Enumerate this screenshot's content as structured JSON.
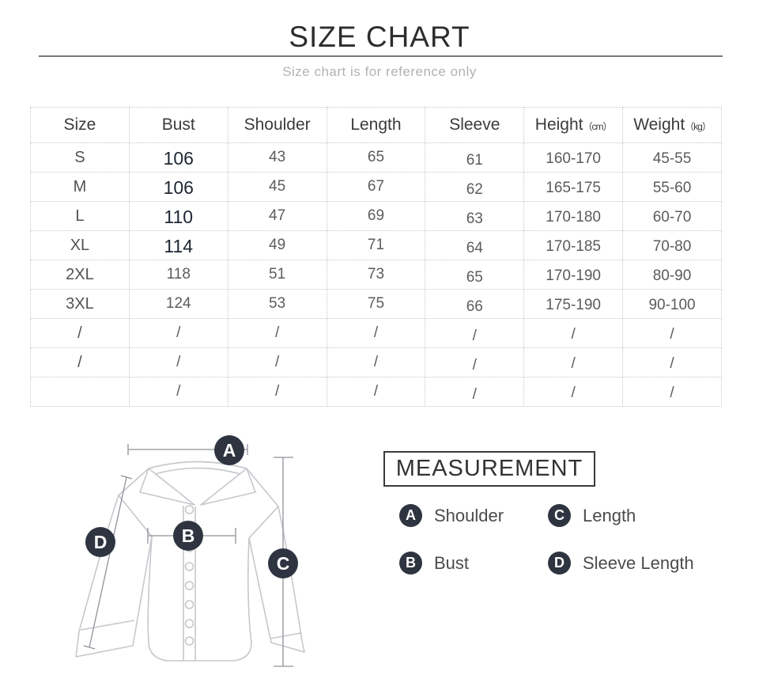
{
  "page": {
    "title": "SIZE CHART",
    "subtitle": "Size chart is for reference only"
  },
  "size_table": {
    "columns": [
      {
        "label": "Size",
        "unit": ""
      },
      {
        "label": "Bust",
        "unit": ""
      },
      {
        "label": "Shoulder",
        "unit": ""
      },
      {
        "label": "Length",
        "unit": ""
      },
      {
        "label": "Sleeve",
        "unit": ""
      },
      {
        "label": "Height",
        "unit": "（cm）"
      },
      {
        "label": "Weight",
        "unit": "（kg）"
      }
    ],
    "rows": [
      {
        "cells": [
          "S",
          "106",
          "43",
          "65",
          "61",
          "160-170",
          "45-55"
        ],
        "bust_emphasis": true
      },
      {
        "cells": [
          "M",
          "106",
          "45",
          "67",
          "62",
          "165-175",
          "55-60"
        ],
        "bust_emphasis": true
      },
      {
        "cells": [
          "L",
          "110",
          "47",
          "69",
          "63",
          "170-180",
          "60-70"
        ],
        "bust_emphasis": true
      },
      {
        "cells": [
          "XL",
          "114",
          "49",
          "71",
          "64",
          "170-185",
          "70-80"
        ],
        "bust_emphasis": true
      },
      {
        "cells": [
          "2XL",
          "118",
          "51",
          "73",
          "65",
          "170-190",
          "80-90"
        ],
        "bust_emphasis": false
      },
      {
        "cells": [
          "3XL",
          "124",
          "53",
          "75",
          "66",
          "175-190",
          "90-100"
        ],
        "bust_emphasis": false
      },
      {
        "cells": [
          "/",
          "/",
          "/",
          "/",
          "/",
          "/",
          "/"
        ],
        "bust_emphasis": false
      },
      {
        "cells": [
          "/",
          "/",
          "/",
          "/",
          "/",
          "/",
          "/"
        ],
        "bust_emphasis": false
      },
      {
        "cells": [
          "",
          "/",
          "/",
          "/",
          "/",
          "/",
          "/"
        ],
        "bust_emphasis": false
      }
    ]
  },
  "diagram": {
    "markers": [
      {
        "letter": "A"
      },
      {
        "letter": "B"
      },
      {
        "letter": "C"
      },
      {
        "letter": "D"
      }
    ]
  },
  "measurement": {
    "title": "MEASUREMENT",
    "legend": [
      {
        "letter": "A",
        "label": "Shoulder"
      },
      {
        "letter": "C",
        "label": "Length"
      },
      {
        "letter": "B",
        "label": "Bust"
      },
      {
        "letter": "D",
        "label": "Sleeve Length"
      }
    ]
  },
  "colors": {
    "badge_bg": "#2e3440",
    "measure_line": "#8e939b",
    "shirt_outline": "#c5c8cc",
    "table_border": "#c6c6c6",
    "title_text": "#2d2d2d",
    "subtitle_text": "#b2b2b2",
    "cell_text": "#5c5c5c",
    "bust_emphasis_text": "#1e2633"
  }
}
